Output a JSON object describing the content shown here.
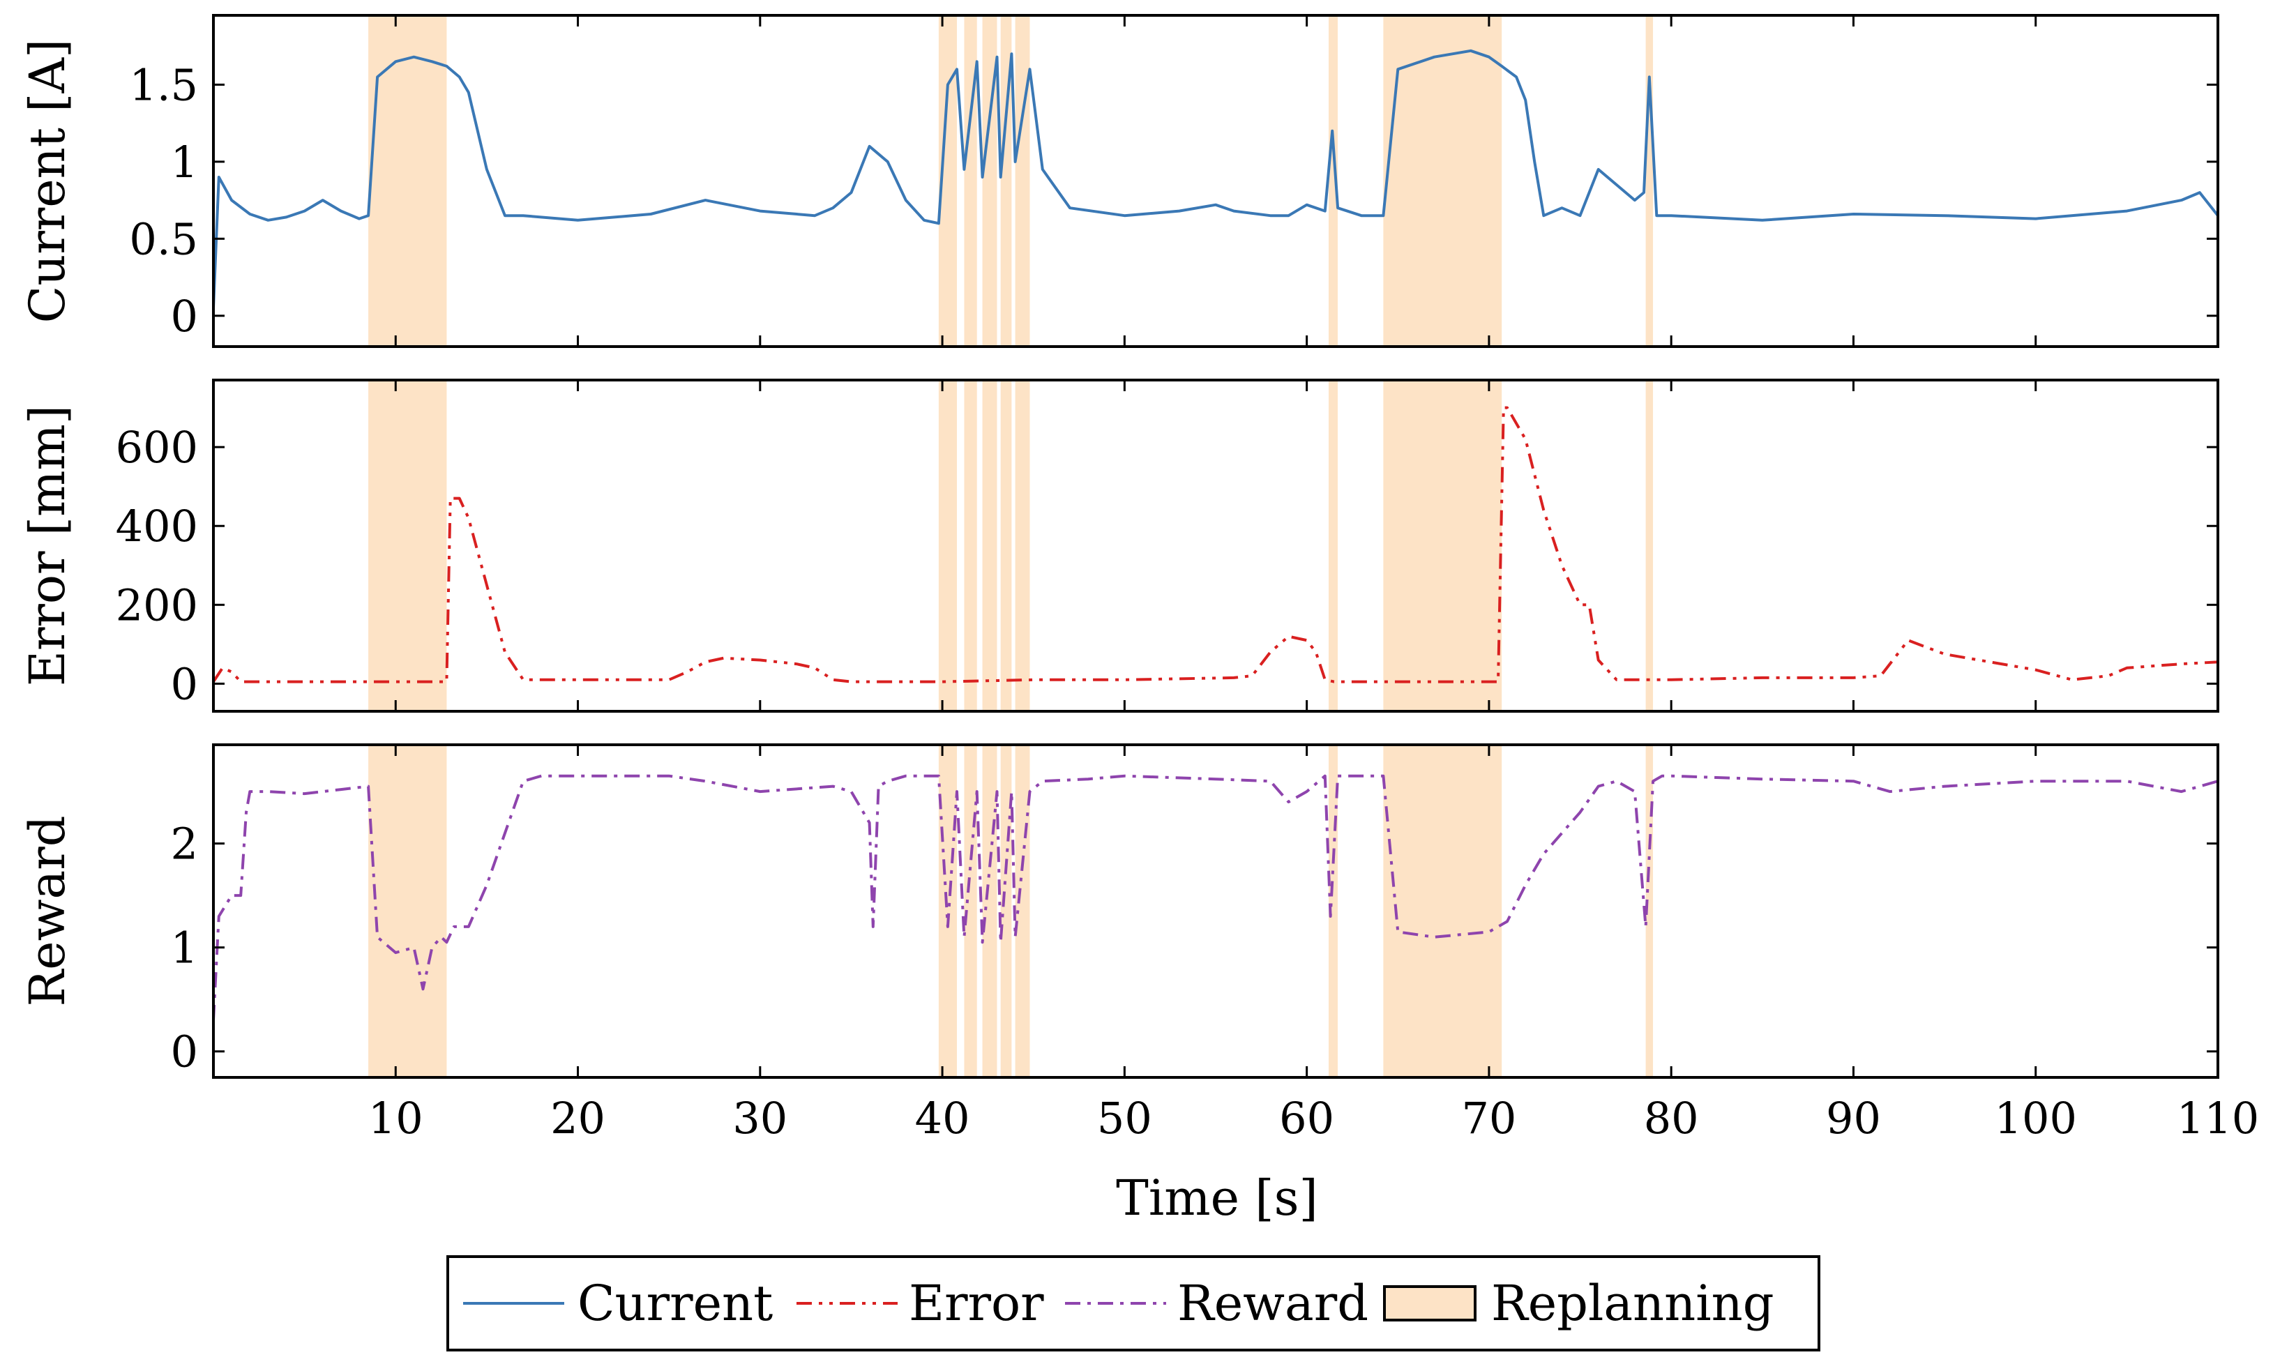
{
  "chart_data": {
    "type": "line",
    "xlabel": "Time [s]",
    "xlim": [
      0,
      110
    ],
    "xticks": [
      10,
      20,
      30,
      40,
      50,
      60,
      70,
      80,
      90,
      100,
      110
    ],
    "replanning_intervals": [
      [
        8.5,
        12.8
      ],
      [
        39.8,
        40.8
      ],
      [
        41.2,
        41.9
      ],
      [
        42.2,
        43.0
      ],
      [
        43.2,
        43.8
      ],
      [
        44.0,
        44.8
      ],
      [
        61.2,
        61.7
      ],
      [
        64.2,
        70.7
      ],
      [
        78.6,
        79.0
      ]
    ],
    "panels": [
      {
        "name": "current",
        "ylabel": "Current [A]",
        "ylim": [
          -0.2,
          1.95
        ],
        "yticks": [
          0,
          0.5,
          1,
          1.5
        ],
        "ytick_labels": [
          "0",
          "0.5",
          "1",
          "1.5"
        ],
        "series": {
          "name": "Current",
          "color": "#3a78b5",
          "x": [
            0,
            0.3,
            1,
            2,
            3,
            4,
            5,
            6,
            7,
            8,
            8.5,
            9,
            10,
            11,
            12,
            12.8,
            13.5,
            14,
            15,
            16,
            17,
            20,
            24,
            27,
            30,
            33,
            34,
            35,
            36,
            37,
            38,
            39,
            39.8,
            40.3,
            40.8,
            41.2,
            41.9,
            42.2,
            43.0,
            43.2,
            43.8,
            44.0,
            44.8,
            45.5,
            47,
            50,
            53,
            55,
            56,
            58,
            59,
            60,
            61,
            61.4,
            61.7,
            63,
            64.2,
            65,
            67,
            69,
            70,
            70.7,
            71.5,
            72,
            72.5,
            73,
            74,
            75,
            76,
            77,
            78,
            78.5,
            78.8,
            79.2,
            80,
            85,
            90,
            95,
            100,
            105,
            108,
            109,
            110
          ],
          "y": [
            0.05,
            0.9,
            0.75,
            0.66,
            0.62,
            0.64,
            0.68,
            0.75,
            0.68,
            0.63,
            0.65,
            1.55,
            1.65,
            1.68,
            1.65,
            1.62,
            1.55,
            1.45,
            0.95,
            0.65,
            0.65,
            0.62,
            0.66,
            0.75,
            0.68,
            0.65,
            0.7,
            0.8,
            1.1,
            1.0,
            0.75,
            0.62,
            0.6,
            1.5,
            1.6,
            0.95,
            1.65,
            0.9,
            1.68,
            0.9,
            1.7,
            1.0,
            1.6,
            0.95,
            0.7,
            0.65,
            0.68,
            0.72,
            0.68,
            0.65,
            0.65,
            0.72,
            0.68,
            1.2,
            0.7,
            0.65,
            0.65,
            1.6,
            1.68,
            1.72,
            1.68,
            1.62,
            1.55,
            1.4,
            1.0,
            0.65,
            0.7,
            0.65,
            0.95,
            0.85,
            0.75,
            0.8,
            1.55,
            0.65,
            0.65,
            0.62,
            0.66,
            0.65,
            0.63,
            0.68,
            0.75,
            0.8,
            0.65
          ]
        }
      },
      {
        "name": "error",
        "ylabel": "Error [mm]",
        "ylim": [
          -70,
          770
        ],
        "yticks": [
          0,
          200,
          400,
          600
        ],
        "ytick_labels": [
          "0",
          "200",
          "400",
          "600"
        ],
        "series": {
          "name": "Error",
          "color": "#d92020",
          "x": [
            0,
            0.5,
            1,
            1.5,
            2,
            5,
            8,
            10,
            12.8,
            13.0,
            13.5,
            14,
            15,
            16,
            17,
            20,
            25,
            26,
            27,
            28,
            30,
            32,
            33,
            34,
            35,
            40,
            45,
            50,
            56,
            57,
            58,
            59,
            60,
            60.5,
            61,
            61.5,
            62,
            65,
            70.5,
            70.8,
            71,
            72,
            73,
            74,
            75,
            75.5,
            76,
            77,
            80,
            85,
            90,
            91.5,
            92.5,
            93,
            95,
            100,
            102,
            104,
            105,
            108,
            110
          ],
          "y": [
            5,
            40,
            30,
            5,
            5,
            5,
            5,
            5,
            5,
            470,
            470,
            420,
            250,
            80,
            10,
            10,
            10,
            30,
            55,
            65,
            60,
            50,
            40,
            10,
            5,
            5,
            10,
            10,
            15,
            20,
            80,
            120,
            110,
            80,
            10,
            5,
            5,
            5,
            5,
            700,
            700,
            620,
            440,
            300,
            200,
            200,
            60,
            10,
            10,
            15,
            15,
            20,
            80,
            110,
            75,
            35,
            10,
            20,
            40,
            50,
            55
          ]
        }
      },
      {
        "name": "reward",
        "ylabel": "Reward",
        "ylim": [
          -0.25,
          2.95
        ],
        "yticks": [
          0,
          1,
          2
        ],
        "ytick_labels": [
          "0",
          "1",
          "2"
        ],
        "series": {
          "name": "Reward",
          "color": "#8e44ad",
          "x": [
            0,
            0.3,
            1,
            1.5,
            1.8,
            2,
            3,
            5,
            7,
            8.5,
            9,
            10,
            11,
            11.5,
            12,
            12.5,
            12.8,
            13.2,
            14,
            15,
            16,
            17,
            18,
            20,
            25,
            27,
            30,
            34,
            35,
            36,
            36.2,
            36.5,
            37,
            38,
            39.8,
            40.3,
            40.8,
            41.2,
            41.9,
            42.2,
            43.0,
            43.2,
            43.8,
            44.0,
            44.8,
            45.5,
            48,
            50,
            55,
            58,
            59,
            60,
            61,
            61.3,
            61.7,
            62,
            64.2,
            65,
            67,
            70,
            71,
            72,
            73,
            74,
            75,
            76,
            77,
            78,
            78.6,
            79,
            79.5,
            80,
            85,
            90,
            92,
            95,
            100,
            105,
            108,
            110
          ],
          "y": [
            0.3,
            1.3,
            1.5,
            1.5,
            2.3,
            2.5,
            2.5,
            2.48,
            2.52,
            2.55,
            1.1,
            0.95,
            1.0,
            0.6,
            1.0,
            1.1,
            1.05,
            1.2,
            1.2,
            1.6,
            2.1,
            2.6,
            2.65,
            2.65,
            2.65,
            2.6,
            2.5,
            2.55,
            2.5,
            2.2,
            1.2,
            2.55,
            2.6,
            2.65,
            2.65,
            1.2,
            2.5,
            1.1,
            2.5,
            1.05,
            2.5,
            1.05,
            2.5,
            1.1,
            2.5,
            2.6,
            2.62,
            2.65,
            2.62,
            2.6,
            2.4,
            2.5,
            2.65,
            1.3,
            2.65,
            2.65,
            2.65,
            1.15,
            1.1,
            1.15,
            1.25,
            1.6,
            1.9,
            2.1,
            2.3,
            2.55,
            2.6,
            2.5,
            1.2,
            2.6,
            2.65,
            2.65,
            2.62,
            2.6,
            2.5,
            2.55,
            2.6,
            2.6,
            2.5,
            2.6
          ]
        }
      }
    ],
    "legend": {
      "placement": "bottom-center",
      "entries": [
        {
          "label": "Current",
          "color": "#3a78b5",
          "style": "solid"
        },
        {
          "label": "Error",
          "color": "#d92020",
          "style": "dashdotdot"
        },
        {
          "label": "Reward",
          "color": "#8e44ad",
          "style": "dashdot"
        },
        {
          "label": "Replanning",
          "color": "#fde3c6",
          "style": "box"
        }
      ]
    }
  }
}
